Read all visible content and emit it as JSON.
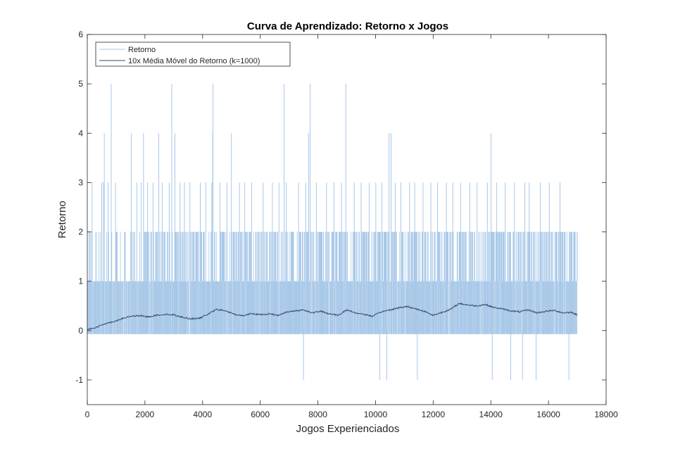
{
  "chart_data": {
    "type": "line",
    "title": "Curva de Aprendizado: Retorno x Jogos",
    "xlabel": "Jogos Experienciados",
    "ylabel": "Retorno",
    "xlim": [
      0,
      18000
    ],
    "ylim": [
      -1.5,
      6
    ],
    "xticks": [
      0,
      2000,
      4000,
      6000,
      8000,
      10000,
      12000,
      14000,
      16000,
      18000
    ],
    "xtick_labels": [
      "0",
      "2000",
      "4000",
      "6000",
      "8000",
      "10000",
      "12000",
      "14000",
      "16000",
      "18000"
    ],
    "yticks": [
      -1,
      0,
      1,
      2,
      3,
      4,
      5,
      6
    ],
    "ytick_labels": [
      "-1",
      "0",
      "1",
      "2",
      "3",
      "4",
      "5",
      "6"
    ],
    "grid": false,
    "legend_position": "top-left",
    "x_max_games": 17000,
    "series": [
      {
        "name": "Retorno",
        "color": "#a8c8e8",
        "style": "spikes",
        "baseline": 0,
        "values_spikes_5": [
          830,
          2930,
          4360,
          6830,
          7730,
          8970
        ],
        "values_spikes_4": [
          590,
          1530,
          1950,
          2480,
          3040,
          4350,
          5000,
          7680,
          10470,
          10540,
          14010
        ],
        "values_spikes_3": [
          170,
          500,
          560,
          720,
          980,
          1720,
          1870,
          2090,
          2280,
          2600,
          2840,
          3220,
          3370,
          3560,
          3920,
          4110,
          4320,
          4600,
          4850,
          5280,
          5460,
          5700,
          6100,
          6420,
          6650,
          6900,
          7330,
          7580,
          7950,
          8300,
          8560,
          8820,
          9260,
          9500,
          9780,
          10010,
          10220,
          10690,
          10880,
          11180,
          11360,
          11650,
          11920,
          12150,
          12460,
          12680,
          12950,
          13270,
          13520,
          13880,
          14200,
          14500,
          14820,
          15180,
          15330,
          15720,
          16030,
          16400
        ],
        "values_spikes_neg1": [
          7500,
          10150,
          10390,
          11450,
          14050,
          14690,
          15100,
          15570,
          16710
        ],
        "dense_until_2_start": 0,
        "dense_until_1_start": 0
      },
      {
        "name": "10x Média Móvel do Retorno (k=1000)",
        "color": "#3e4a6e",
        "style": "line",
        "x": [
          0,
          300,
          600,
          900,
          1200,
          1500,
          1800,
          2100,
          2400,
          2700,
          3000,
          3300,
          3600,
          3900,
          4200,
          4500,
          4800,
          5100,
          5400,
          5700,
          6000,
          6300,
          6600,
          6900,
          7200,
          7500,
          7800,
          8100,
          8400,
          8700,
          9000,
          9300,
          9600,
          9900,
          10200,
          10500,
          10800,
          11100,
          11400,
          11700,
          12000,
          12300,
          12600,
          12900,
          13200,
          13500,
          13800,
          14100,
          14400,
          14700,
          15000,
          15300,
          15600,
          15900,
          16200,
          16500,
          16800,
          17000
        ],
        "y": [
          0.03,
          0.06,
          0.14,
          0.18,
          0.24,
          0.29,
          0.3,
          0.28,
          0.31,
          0.33,
          0.32,
          0.27,
          0.24,
          0.25,
          0.34,
          0.43,
          0.4,
          0.33,
          0.3,
          0.35,
          0.32,
          0.34,
          0.31,
          0.37,
          0.4,
          0.42,
          0.36,
          0.39,
          0.34,
          0.31,
          0.42,
          0.36,
          0.33,
          0.29,
          0.38,
          0.42,
          0.46,
          0.49,
          0.44,
          0.39,
          0.31,
          0.37,
          0.43,
          0.55,
          0.52,
          0.5,
          0.53,
          0.47,
          0.44,
          0.4,
          0.38,
          0.42,
          0.36,
          0.39,
          0.41,
          0.36,
          0.37,
          0.32
        ]
      }
    ]
  }
}
